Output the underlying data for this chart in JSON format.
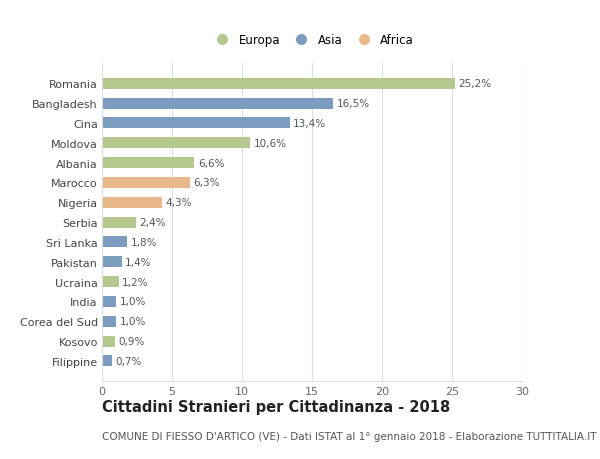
{
  "countries": [
    "Romania",
    "Bangladesh",
    "Cina",
    "Moldova",
    "Albania",
    "Marocco",
    "Nigeria",
    "Serbia",
    "Sri Lanka",
    "Pakistan",
    "Ucraina",
    "India",
    "Corea del Sud",
    "Kosovo",
    "Filippine"
  ],
  "values": [
    25.2,
    16.5,
    13.4,
    10.6,
    6.6,
    6.3,
    4.3,
    2.4,
    1.8,
    1.4,
    1.2,
    1.0,
    1.0,
    0.9,
    0.7
  ],
  "labels": [
    "25,2%",
    "16,5%",
    "13,4%",
    "10,6%",
    "6,6%",
    "6,3%",
    "4,3%",
    "2,4%",
    "1,8%",
    "1,4%",
    "1,2%",
    "1,0%",
    "1,0%",
    "0,9%",
    "0,7%"
  ],
  "continents": [
    "Europa",
    "Asia",
    "Asia",
    "Europa",
    "Europa",
    "Africa",
    "Africa",
    "Europa",
    "Asia",
    "Asia",
    "Europa",
    "Asia",
    "Asia",
    "Europa",
    "Asia"
  ],
  "colors": {
    "Europa": "#b5c98e",
    "Asia": "#7b9bbf",
    "Africa": "#e8b88a"
  },
  "title": "Cittadini Stranieri per Cittadinanza - 2018",
  "subtitle": "COMUNE DI FIESSO D'ARTICO (VE) - Dati ISTAT al 1° gennaio 2018 - Elaborazione TUTTITALIA.IT",
  "xlim": [
    0,
    30
  ],
  "xticks": [
    0,
    5,
    10,
    15,
    20,
    25,
    30
  ],
  "background_color": "#ffffff",
  "grid_color": "#dddddd",
  "bar_height": 0.55,
  "title_fontsize": 10.5,
  "subtitle_fontsize": 7.5,
  "tick_fontsize": 8,
  "label_fontsize": 7.5,
  "legend_fontsize": 8.5
}
